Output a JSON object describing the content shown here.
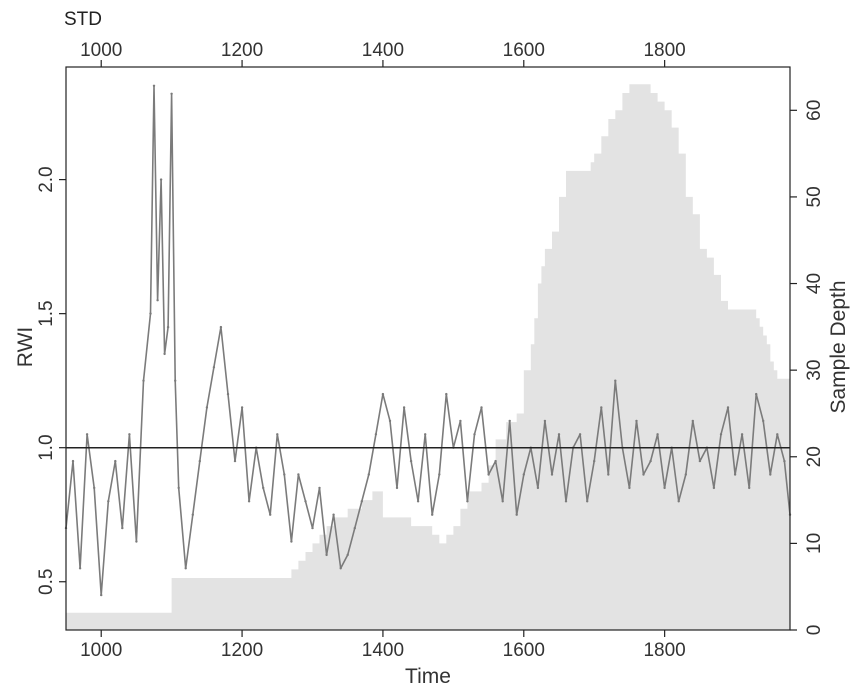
{
  "chart_data": {
    "type": "line",
    "corner_title": "STD",
    "xlabel": "Time",
    "ylabel": "RWI",
    "y2label": "Sample Depth",
    "xlim": [
      950,
      1978
    ],
    "ylim": [
      0.32,
      2.42
    ],
    "y2lim": [
      0,
      65
    ],
    "x_ticks": [
      1000,
      1200,
      1400,
      1600,
      1800
    ],
    "y_ticks": [
      0.5,
      1.0,
      1.5,
      2.0
    ],
    "y_tick_labels": [
      "0.5",
      "1.0",
      "1.5",
      "2.0"
    ],
    "y2_ticks": [
      0,
      10,
      20,
      30,
      40,
      50,
      60
    ],
    "reference_line": 1.0,
    "grid": false,
    "legend": "none",
    "colors": {
      "series": "#7b7b7b",
      "depth": "#e3e3e3",
      "axis": "#222222",
      "reference": "#222222"
    },
    "series": [
      {
        "role": "rwi-chronology",
        "x": [
          950,
          960,
          970,
          980,
          990,
          1000,
          1010,
          1020,
          1030,
          1040,
          1050,
          1060,
          1070,
          1075,
          1080,
          1085,
          1090,
          1095,
          1100,
          1105,
          1110,
          1120,
          1130,
          1140,
          1150,
          1160,
          1170,
          1180,
          1190,
          1200,
          1210,
          1220,
          1230,
          1240,
          1250,
          1260,
          1270,
          1280,
          1290,
          1300,
          1310,
          1320,
          1330,
          1340,
          1350,
          1360,
          1370,
          1380,
          1390,
          1400,
          1410,
          1420,
          1430,
          1440,
          1450,
          1460,
          1470,
          1480,
          1490,
          1500,
          1510,
          1520,
          1530,
          1540,
          1550,
          1560,
          1570,
          1580,
          1590,
          1600,
          1610,
          1620,
          1630,
          1640,
          1650,
          1660,
          1670,
          1680,
          1690,
          1700,
          1710,
          1720,
          1730,
          1740,
          1750,
          1760,
          1770,
          1780,
          1790,
          1800,
          1810,
          1820,
          1830,
          1840,
          1850,
          1860,
          1870,
          1880,
          1890,
          1900,
          1910,
          1920,
          1930,
          1940,
          1950,
          1960,
          1970,
          1978
        ],
        "y": [
          0.7,
          0.95,
          0.55,
          1.05,
          0.85,
          0.45,
          0.8,
          0.95,
          0.7,
          1.05,
          0.65,
          1.25,
          1.5,
          2.35,
          1.55,
          2.0,
          1.35,
          1.45,
          2.32,
          1.25,
          0.85,
          0.55,
          0.75,
          0.95,
          1.15,
          1.3,
          1.45,
          1.2,
          0.95,
          1.15,
          0.8,
          1.0,
          0.85,
          0.75,
          1.05,
          0.9,
          0.65,
          0.9,
          0.8,
          0.7,
          0.85,
          0.6,
          0.75,
          0.55,
          0.6,
          0.7,
          0.8,
          0.9,
          1.05,
          1.2,
          1.1,
          0.85,
          1.15,
          0.95,
          0.8,
          1.05,
          0.75,
          0.9,
          1.2,
          1.0,
          1.1,
          0.8,
          1.05,
          1.15,
          0.9,
          0.95,
          0.8,
          1.1,
          0.75,
          0.9,
          1.0,
          0.85,
          1.1,
          0.9,
          1.05,
          0.8,
          1.0,
          1.05,
          0.8,
          0.95,
          1.15,
          0.9,
          1.25,
          1.0,
          0.85,
          1.1,
          0.9,
          0.95,
          1.05,
          0.85,
          1.0,
          0.8,
          0.9,
          1.1,
          0.95,
          1.0,
          0.85,
          1.05,
          1.15,
          0.9,
          1.05,
          0.85,
          1.2,
          1.1,
          0.9,
          1.05,
          0.95,
          0.75
        ]
      },
      {
        "role": "sample-depth",
        "axis": "right",
        "x": [
          950,
          1100,
          1100,
          1270,
          1270,
          1280,
          1280,
          1290,
          1290,
          1300,
          1300,
          1310,
          1310,
          1320,
          1320,
          1330,
          1330,
          1350,
          1350,
          1370,
          1370,
          1385,
          1385,
          1400,
          1400,
          1440,
          1440,
          1470,
          1470,
          1480,
          1480,
          1490,
          1490,
          1500,
          1500,
          1510,
          1510,
          1520,
          1520,
          1540,
          1540,
          1550,
          1550,
          1560,
          1560,
          1575,
          1575,
          1590,
          1590,
          1600,
          1600,
          1610,
          1610,
          1615,
          1615,
          1620,
          1620,
          1625,
          1625,
          1630,
          1630,
          1640,
          1640,
          1650,
          1650,
          1660,
          1660,
          1695,
          1695,
          1700,
          1700,
          1710,
          1710,
          1720,
          1720,
          1730,
          1730,
          1740,
          1740,
          1750,
          1750,
          1780,
          1780,
          1790,
          1790,
          1800,
          1800,
          1810,
          1810,
          1820,
          1820,
          1830,
          1830,
          1840,
          1840,
          1850,
          1850,
          1860,
          1860,
          1870,
          1870,
          1880,
          1880,
          1890,
          1890,
          1930,
          1930,
          1935,
          1935,
          1940,
          1940,
          1945,
          1945,
          1950,
          1950,
          1955,
          1955,
          1960,
          1960,
          1978
        ],
        "y": [
          2,
          2,
          6,
          6,
          7,
          7,
          8,
          8,
          9,
          9,
          10,
          10,
          11,
          11,
          12,
          12,
          13,
          13,
          14,
          14,
          15,
          15,
          16,
          16,
          13,
          13,
          12,
          12,
          11,
          11,
          10,
          10,
          11,
          11,
          12,
          12,
          14,
          14,
          16,
          16,
          17,
          17,
          19,
          19,
          22,
          22,
          24,
          24,
          25,
          25,
          30,
          30,
          33,
          33,
          36,
          36,
          40,
          40,
          42,
          42,
          44,
          44,
          46,
          46,
          50,
          50,
          53,
          53,
          54,
          54,
          55,
          55,
          57,
          57,
          59,
          59,
          60,
          60,
          62,
          62,
          63,
          63,
          62,
          62,
          61,
          61,
          60,
          60,
          58,
          58,
          55,
          55,
          50,
          50,
          48,
          48,
          44,
          44,
          43,
          43,
          41,
          41,
          38,
          38,
          37,
          37,
          36,
          36,
          35,
          35,
          34,
          34,
          33,
          33,
          31,
          31,
          30,
          30,
          29,
          29
        ]
      }
    ]
  }
}
